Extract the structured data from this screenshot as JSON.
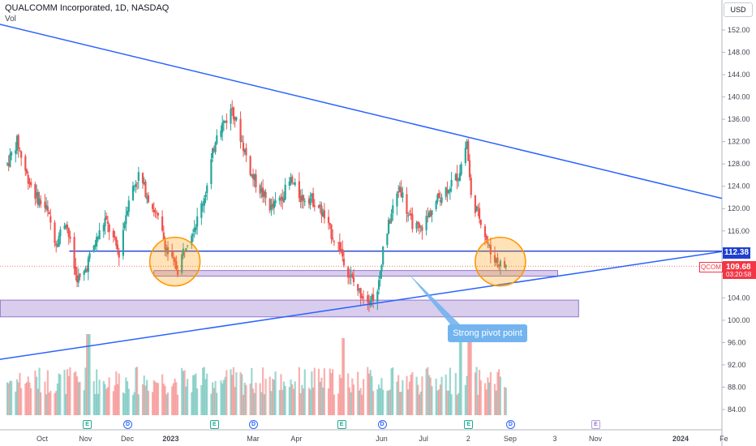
{
  "header": {
    "title": "QUALCOMM Incorporated, 1D, NASDAQ",
    "volume_label": "Vol",
    "currency": "USD"
  },
  "colors": {
    "up": "#26a69a",
    "down": "#ef5350",
    "trendline": "#2962ff",
    "support_level": "#1e3fd0",
    "zone_fill": "#d1c4e9",
    "zone_border": "#9575cd",
    "circle": "#ff9800",
    "callout": "#72b4ef"
  },
  "chart_data": {
    "type": "candlestick",
    "title": "QUALCOMM Incorporated, 1D, NASDAQ",
    "ylim": [
      82,
      154
    ],
    "y_ticks": [
      84,
      88,
      92,
      96,
      100,
      104,
      108,
      112,
      116,
      120,
      124,
      128,
      132,
      136,
      140,
      144,
      148,
      152
    ],
    "x_ticks": [
      {
        "label": "Oct",
        "date": "2022-10-01"
      },
      {
        "label": "Nov",
        "date": "2022-11-01"
      },
      {
        "label": "Dec",
        "date": "2022-12-01"
      },
      {
        "label": "2023",
        "date": "2023-01-01"
      },
      {
        "label": "Mar",
        "date": "2023-03-01"
      },
      {
        "label": "Apr",
        "date": "2023-04-01"
      },
      {
        "label": "Jun",
        "date": "2023-06-01"
      },
      {
        "label": "Jul",
        "date": "2023-07-01"
      },
      {
        "label": "2",
        "date": "2023-08-02"
      },
      {
        "label": "Sep",
        "date": "2023-09-01"
      },
      {
        "label": "3",
        "date": "2023-10-03"
      },
      {
        "label": "Nov",
        "date": "2023-11-01"
      },
      {
        "label": "2024",
        "date": "2024-01-01"
      },
      {
        "label": "Fe",
        "date": "2024-02-01"
      }
    ],
    "path": [
      [
        "2022-09-06",
        128,
        130,
        125
      ],
      [
        "2022-09-13",
        132,
        134,
        130
      ],
      [
        "2022-09-20",
        126,
        128,
        122
      ],
      [
        "2022-09-27",
        122,
        124,
        118
      ],
      [
        "2022-10-04",
        120,
        125,
        117
      ],
      [
        "2022-10-11",
        114,
        118,
        112
      ],
      [
        "2022-10-18",
        118,
        121,
        115
      ],
      [
        "2022-10-25",
        108,
        112,
        105
      ],
      [
        "2022-10-29",
        107,
        110,
        104.5
      ],
      [
        "2022-11-05",
        112,
        116,
        110
      ],
      [
        "2022-11-15",
        118,
        121,
        115
      ],
      [
        "2022-11-25",
        112,
        115,
        110
      ],
      [
        "2022-12-02",
        122,
        125,
        119
      ],
      [
        "2022-12-09",
        126,
        129,
        124
      ],
      [
        "2022-12-16",
        122,
        125,
        118
      ],
      [
        "2022-12-23",
        118,
        121,
        114
      ],
      [
        "2022-12-30",
        112,
        114,
        108
      ],
      [
        "2023-01-06",
        109,
        112,
        107
      ],
      [
        "2023-01-12",
        114,
        117,
        111
      ],
      [
        "2023-01-20",
        118,
        121,
        116
      ],
      [
        "2023-01-27",
        124,
        127,
        121
      ],
      [
        "2023-02-03",
        134,
        137,
        129
      ],
      [
        "2023-02-10",
        136,
        140,
        133
      ],
      [
        "2023-02-14",
        138,
        140,
        135
      ],
      [
        "2023-02-21",
        132,
        135,
        129
      ],
      [
        "2023-02-28",
        126,
        129,
        123
      ],
      [
        "2023-03-07",
        123,
        126,
        120
      ],
      [
        "2023-03-14",
        120,
        123,
        118
      ],
      [
        "2023-03-21",
        122,
        126,
        119
      ],
      [
        "2023-03-28",
        125,
        128,
        122
      ],
      [
        "2023-04-04",
        122,
        125,
        119
      ],
      [
        "2023-04-11",
        122,
        124,
        119
      ],
      [
        "2023-04-18",
        120,
        122,
        117
      ],
      [
        "2023-04-25",
        116,
        119,
        114
      ],
      [
        "2023-05-02",
        113,
        116,
        111
      ],
      [
        "2023-05-09",
        108,
        110,
        106
      ],
      [
        "2023-05-16",
        105,
        108,
        103
      ],
      [
        "2023-05-23",
        104,
        106,
        102
      ],
      [
        "2023-05-29",
        104.5,
        106,
        101.5
      ],
      [
        "2023-06-02",
        113,
        115,
        110
      ],
      [
        "2023-06-09",
        120,
        123,
        117
      ],
      [
        "2023-06-14",
        124,
        126,
        121
      ],
      [
        "2023-06-21",
        118,
        121,
        116
      ],
      [
        "2023-06-28",
        116,
        119,
        114
      ],
      [
        "2023-07-05",
        119,
        121,
        116
      ],
      [
        "2023-07-12",
        122,
        125,
        120
      ],
      [
        "2023-07-19",
        124,
        127,
        121
      ],
      [
        "2023-07-26",
        126,
        129,
        124
      ],
      [
        "2023-08-01",
        132,
        133,
        129
      ],
      [
        "2023-08-04",
        122,
        124,
        119
      ],
      [
        "2023-08-11",
        118,
        120,
        115
      ],
      [
        "2023-08-18",
        112,
        114,
        110
      ],
      [
        "2023-08-25",
        110,
        112,
        108
      ],
      [
        "2023-08-29",
        109.68,
        112,
        108.5
      ]
    ],
    "last_price": 109.68,
    "countdown": "03:20:58",
    "symbol": "QCOM",
    "horizontal_level": 112.38,
    "support_zones": [
      {
        "from": "2022-12-20",
        "to": "2023-10-05",
        "low": 107.9,
        "high": 108.9
      },
      {
        "from": "2022-09-01",
        "to": "2023-10-20",
        "low": 100.6,
        "high": 103.6
      }
    ],
    "trendlines": [
      {
        "from": [
          "2022-09-01",
          153
        ],
        "to": [
          "2024-02-05",
          121.5
        ]
      },
      {
        "from": [
          "2022-09-01",
          93
        ],
        "to": [
          "2024-02-05",
          112.5
        ]
      }
    ],
    "circles": [
      {
        "date": "2023-01-04",
        "price": 110.5
      },
      {
        "date": "2023-08-25",
        "price": 110.5
      }
    ],
    "callout": {
      "text": "Strong pivot point",
      "anchor": [
        "2023-06-20",
        108.4
      ]
    },
    "events": [
      {
        "type": "E",
        "date": "2022-11-02"
      },
      {
        "type": "D",
        "date": "2022-12-01"
      },
      {
        "type": "E",
        "date": "2023-02-01"
      },
      {
        "type": "D",
        "date": "2023-03-01"
      },
      {
        "type": "E",
        "date": "2023-05-03"
      },
      {
        "type": "D",
        "date": "2023-06-01"
      },
      {
        "type": "E",
        "date": "2023-08-02"
      },
      {
        "type": "D",
        "date": "2023-09-01"
      },
      {
        "type": "E",
        "date": "2023-11-01",
        "future": true
      }
    ],
    "volume_spikes": [
      {
        "date": "2022-11-03",
        "rel": 1.0
      },
      {
        "date": "2023-05-05",
        "rel": 0.95
      },
      {
        "date": "2023-07-28",
        "rel": 1.0
      },
      {
        "date": "2023-08-03",
        "rel": 1.0
      }
    ]
  }
}
